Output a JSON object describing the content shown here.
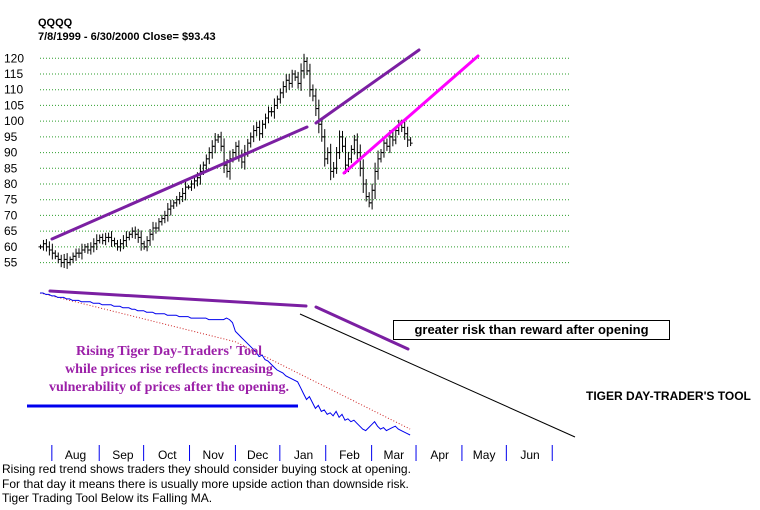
{
  "header": {
    "ticker": "QQQQ",
    "range_line": "7/8/1999 - 6/30/2000   Close= $93.43"
  },
  "annotations": {
    "callout": "greater risk than reward after opening",
    "note_lines": [
      "Rising Tiger Day-Traders' Tool",
      "while prices rise reflects increasing",
      "vulnerability of prices after the opening."
    ],
    "tool_label": "TIGER DAY-TRADER'S TOOL",
    "bottom_lines": [
      "Rising red trend shows traders they should consider buying stock at opening.",
      " For that day it means there is usually more upside action than downside risk.",
      "Tiger Trading Tool Below its Falling MA."
    ]
  },
  "colors": {
    "price_bars": "#000000",
    "grid": "#2e9e2e",
    "trend_purple": "#7b1fa2",
    "trend_magenta": "#ff00ff",
    "indicator_line": "#0000ee",
    "ma_dotted": "#cc2020",
    "note_text": "#9b1fa8",
    "note_underline": "#0000ee"
  },
  "chart_data": {
    "type": "line",
    "title": "QQQQ",
    "price_panel": {
      "ylim": [
        52,
        122
      ],
      "yticks": [
        55,
        60,
        65,
        70,
        75,
        80,
        85,
        90,
        95,
        100,
        105,
        110,
        115,
        120
      ],
      "grid": true,
      "x_start_day": 0,
      "x_step_days": 2,
      "closes": [
        60,
        61,
        60,
        59,
        58,
        57,
        56,
        55,
        56,
        55,
        56,
        57,
        58,
        58,
        59,
        60,
        59,
        60,
        61,
        62,
        63,
        62,
        63,
        63,
        62,
        61,
        60,
        61,
        62,
        63,
        64,
        65,
        64,
        63,
        61,
        60,
        62,
        64,
        66,
        66,
        68,
        69,
        70,
        72,
        73,
        74,
        75,
        76,
        77,
        79,
        79,
        80,
        81,
        82,
        84,
        86,
        88,
        90,
        92,
        94,
        95,
        92,
        86,
        84,
        88,
        90,
        92,
        89,
        87,
        90,
        93,
        95,
        97,
        98,
        96,
        99,
        101,
        103,
        103,
        105,
        107,
        109,
        111,
        113,
        112,
        115,
        114,
        112,
        116,
        119,
        116,
        110,
        108,
        104,
        99,
        95,
        88,
        90,
        84,
        85,
        90,
        95,
        92,
        86,
        88,
        91,
        94,
        90,
        85,
        80,
        76,
        74,
        78,
        84,
        88,
        90,
        93,
        92,
        95,
        94,
        97,
        99,
        98,
        96,
        94,
        93
      ],
      "month_labels": [
        "Aug",
        "Sep",
        "Oct",
        "Nov",
        "Dec",
        "Jan",
        "Feb",
        "Mar",
        "Apr",
        "May",
        "Jun"
      ],
      "month_label_day": [
        24,
        56,
        86,
        117,
        147,
        178,
        209,
        239,
        270,
        300,
        331
      ],
      "month_tick_day": [
        8,
        40,
        70,
        101,
        132,
        162,
        193,
        224,
        254,
        285,
        315,
        346
      ]
    },
    "indicator_panel": {
      "ylim": [
        0,
        100
      ],
      "x_start_day": 0,
      "x_step_days": 2,
      "values": [
        98,
        98,
        97,
        97,
        96,
        96,
        95,
        95,
        95,
        94,
        94,
        93,
        93,
        93,
        92,
        92,
        92,
        92,
        91,
        91,
        91,
        90,
        90,
        90,
        90,
        89,
        89,
        89,
        88,
        88,
        88,
        87,
        87,
        86,
        86,
        86,
        85,
        85,
        85,
        84,
        84,
        84,
        84,
        83,
        83,
        83,
        83,
        82,
        82,
        82,
        82,
        81,
        81,
        81,
        81,
        81,
        81,
        80,
        80,
        80,
        80,
        80,
        80,
        81,
        80,
        78,
        72,
        70,
        68,
        66,
        64,
        62,
        60,
        58,
        55,
        56,
        53,
        52,
        50,
        48,
        46,
        45,
        44,
        42,
        41,
        40,
        39,
        38,
        34,
        30,
        26,
        28,
        24,
        20,
        22,
        18,
        19,
        16,
        17,
        15,
        18,
        14,
        16,
        12,
        13,
        11,
        12,
        10,
        8,
        6,
        5,
        7,
        9,
        11,
        8,
        6,
        7,
        5,
        6,
        7,
        8,
        6,
        5,
        4,
        3,
        2
      ],
      "moving_average": [
        98,
        97.5,
        97,
        96.5,
        96,
        95.5,
        95,
        94.5,
        94,
        93.5,
        93,
        92.5,
        92,
        91.5,
        91,
        90.5,
        90,
        89.5,
        89,
        88.5,
        88,
        87.5,
        87,
        86.5,
        86,
        85.5,
        85,
        84.5,
        84,
        83.5,
        83,
        82.5,
        82,
        81.5,
        81,
        80.5,
        80,
        79.5,
        79,
        78.5,
        78,
        77.5,
        77,
        76.5,
        76,
        75.5,
        75,
        74.5,
        74,
        73.5,
        73,
        72.5,
        72,
        71.5,
        71,
        70.5,
        70,
        69.5,
        69,
        68.5,
        68,
        67.5,
        67,
        66.5,
        66,
        65.5,
        65,
        64,
        63,
        62,
        61,
        60,
        59,
        58,
        57,
        56,
        55,
        54,
        53,
        52,
        51,
        50,
        49,
        48,
        47,
        46,
        45,
        44,
        43,
        42,
        41,
        40,
        39,
        38,
        37,
        36,
        35,
        34,
        33,
        32,
        31,
        30,
        29,
        28,
        27,
        26,
        25,
        24,
        23,
        22,
        21,
        20,
        19,
        18,
        17,
        16,
        15,
        14,
        13,
        12,
        11,
        10,
        9,
        8,
        7,
        6
      ]
    }
  }
}
